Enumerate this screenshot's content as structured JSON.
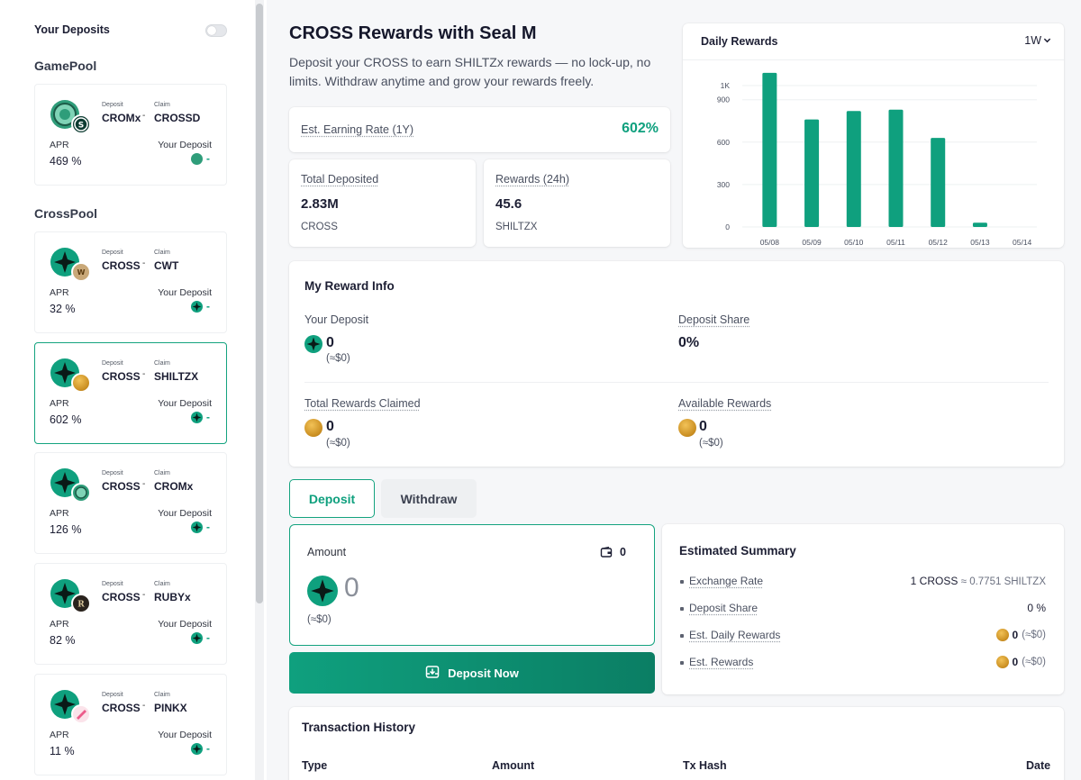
{
  "sidebar": {
    "your_deposits_label": "Your Deposits",
    "sections": [
      {
        "title": "GamePool"
      },
      {
        "title": "CrossPool"
      }
    ],
    "pools": [
      {
        "deposit_label": "Deposit",
        "claim_label": "Claim",
        "deposit_token": "CROMx",
        "claim_token": "CROSSD",
        "apr_label": "APR",
        "apr": "469 %",
        "your_deposit_label": "Your Deposit",
        "your_deposit": "-",
        "selected": false
      },
      {
        "deposit_label": "Deposit",
        "claim_label": "Claim",
        "deposit_token": "CROSS",
        "claim_token": "CWT",
        "apr_label": "APR",
        "apr": "32 %",
        "your_deposit_label": "Your Deposit",
        "your_deposit": "-",
        "selected": false
      },
      {
        "deposit_label": "Deposit",
        "claim_label": "Claim",
        "deposit_token": "CROSS",
        "claim_token": "SHILTZX",
        "apr_label": "APR",
        "apr": "602 %",
        "your_deposit_label": "Your Deposit",
        "your_deposit": "-",
        "selected": true
      },
      {
        "deposit_label": "Deposit",
        "claim_label": "Claim",
        "deposit_token": "CROSS",
        "claim_token": "CROMx",
        "apr_label": "APR",
        "apr": "126 %",
        "your_deposit_label": "Your Deposit",
        "your_deposit": "-",
        "selected": false
      },
      {
        "deposit_label": "Deposit",
        "claim_label": "Claim",
        "deposit_token": "CROSS",
        "claim_token": "RUBYx",
        "apr_label": "APR",
        "apr": "82 %",
        "your_deposit_label": "Your Deposit",
        "your_deposit": "-",
        "selected": false
      },
      {
        "deposit_label": "Deposit",
        "claim_label": "Claim",
        "deposit_token": "CROSS",
        "claim_token": "PINKX",
        "apr_label": "APR",
        "apr": "11 %",
        "your_deposit_label": "Your Deposit",
        "your_deposit": "-",
        "selected": false
      }
    ]
  },
  "header": {
    "title": "CROSS Rewards with Seal M",
    "description": "Deposit your CROSS to earn SHILTZx rewards — no lock-up, no limits. Withdraw anytime and grow your rewards freely."
  },
  "stats": {
    "earning_rate_label": "Est. Earning Rate (1Y)",
    "earning_rate": "602%",
    "total_deposited_label": "Total Deposited",
    "total_deposited": "2.83M",
    "total_deposited_unit": "CROSS",
    "rewards_24h_label": "Rewards (24h)",
    "rewards_24h": "45.6",
    "rewards_24h_unit": "SHILTZX"
  },
  "daily_rewards": {
    "title": "Daily Rewards",
    "range": "1W",
    "range_caret": "⌄"
  },
  "chart_data": {
    "type": "bar",
    "title": "Daily Rewards",
    "categories": [
      "05/08",
      "05/09",
      "05/10",
      "05/11",
      "05/12",
      "05/13",
      "05/14"
    ],
    "values": [
      1090,
      760,
      820,
      830,
      630,
      30,
      0
    ],
    "ylim": [
      0,
      1000
    ],
    "yticks": [
      0,
      300,
      600,
      900,
      1000
    ],
    "ytick_labels": [
      "0",
      "300",
      "600",
      "900",
      "1K"
    ],
    "grid": true,
    "color": "#0fa07e"
  },
  "reward_info": {
    "title": "My Reward Info",
    "your_deposit_label": "Your Deposit",
    "your_deposit": "0",
    "your_deposit_usd": "(≈$0)",
    "deposit_share_label": "Deposit Share",
    "deposit_share": "0%",
    "total_claimed_label": "Total Rewards Claimed",
    "total_claimed": "0",
    "total_claimed_usd": "(≈$0)",
    "available_label": "Available Rewards",
    "available": "0",
    "available_usd": "(≈$0)"
  },
  "tabs": {
    "deposit": "Deposit",
    "withdraw": "Withdraw"
  },
  "amount": {
    "label": "Amount",
    "wallet_balance": "0",
    "value": "0",
    "usd": "(≈$0)"
  },
  "deposit_button": "Deposit Now",
  "summary": {
    "title": "Estimated Summary",
    "rows": [
      {
        "key": "Exchange Rate",
        "value_main": "1 CROSS",
        "value_sub": "≈ 0.7751 SHILTZX"
      },
      {
        "key": "Deposit Share",
        "value_main": "0 %",
        "value_sub": ""
      },
      {
        "key": "Est. Daily Rewards",
        "value_main": "0",
        "value_sub": "(≈$0)"
      },
      {
        "key": "Est. Rewards",
        "value_main": "0",
        "value_sub": "(≈$0)"
      }
    ]
  },
  "history": {
    "title": "Transaction History",
    "columns": [
      "Type",
      "Amount",
      "Tx Hash",
      "Date"
    ]
  },
  "colors": {
    "accent": "#0fa07e",
    "accent_dark": "#0b8a6b",
    "text": "#1c1e33"
  },
  "icons": {
    "cross_token": "cross-logo-icon",
    "shiltzx_token": "shiltzx-coin-icon",
    "wallet": "wallet-icon",
    "deposit": "deposit-tray-icon"
  }
}
